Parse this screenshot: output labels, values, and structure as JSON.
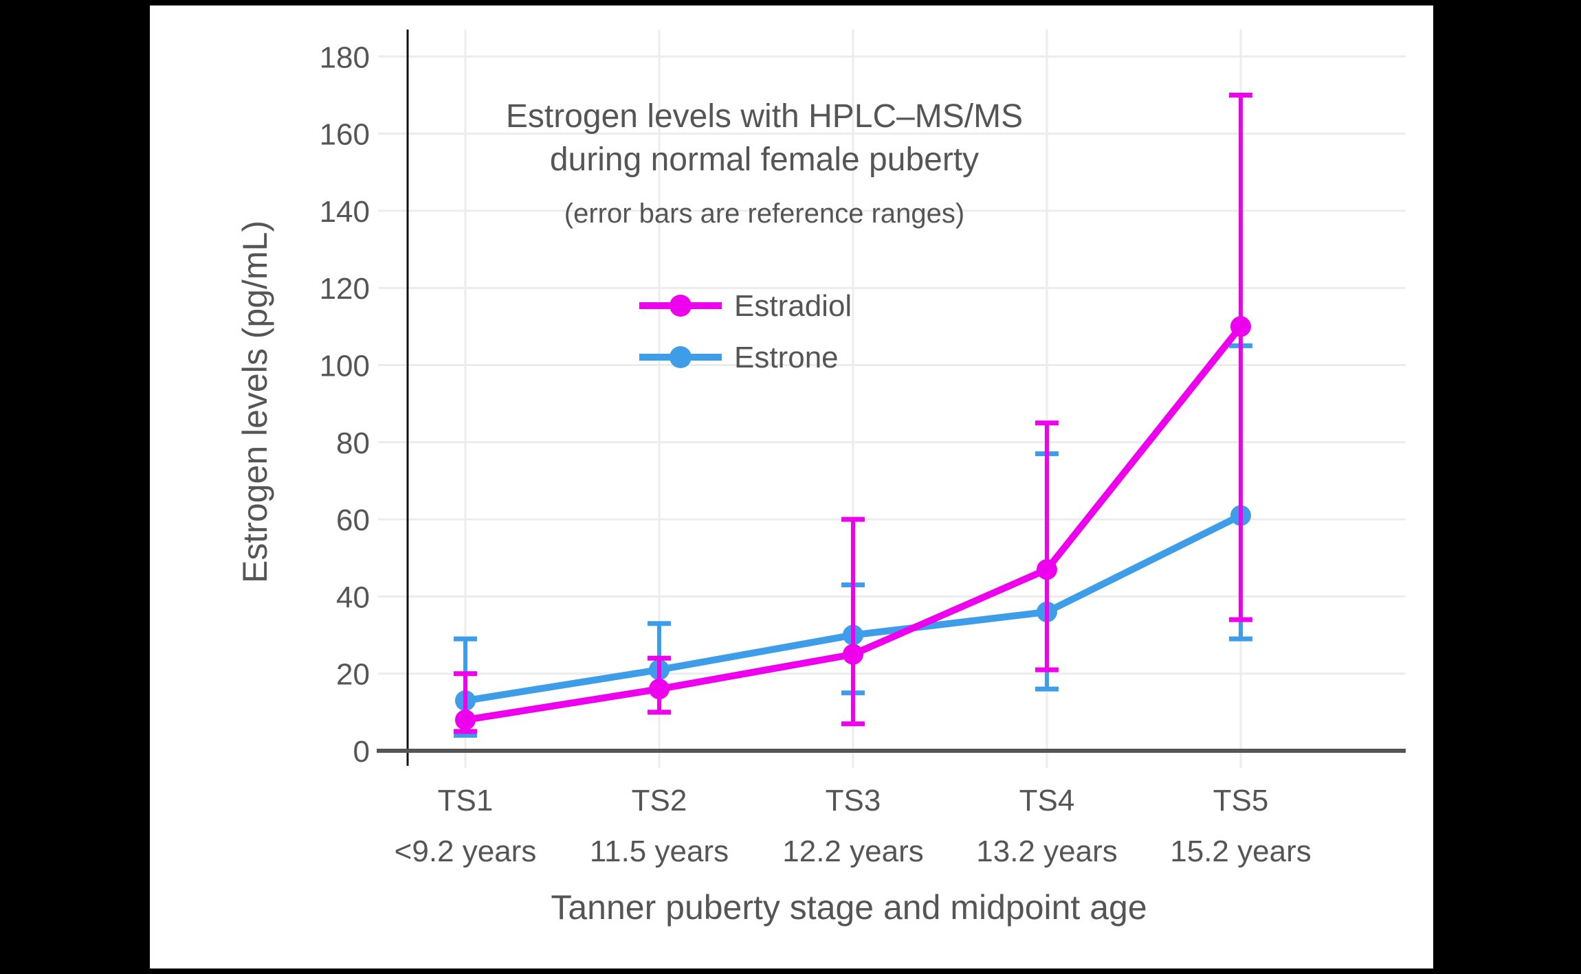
{
  "frame": {
    "background": "#000000",
    "canvas_background": "#ffffff"
  },
  "colors": {
    "estradiol": "#EE00EE",
    "estrone": "#3D9DE8",
    "text": "#555555",
    "tick_text": "#4d4d4d",
    "gridline": "#ECECEC",
    "y_axis_line": "#111111",
    "x_axis_line": "#555555"
  },
  "chart_data": {
    "type": "line",
    "title_line1": "Estrogen levels with HPLC–MS/MS",
    "title_line2": "during normal female puberty",
    "subtitle": "(error bars are reference ranges)",
    "xlabel": "Tanner puberty stage and midpoint age",
    "ylabel": "Estrogen levels (pg/mL)",
    "categories": [
      "TS1",
      "TS2",
      "TS3",
      "TS4",
      "TS5"
    ],
    "category_sublabels": [
      "<9.2 years",
      "11.5 years",
      "12.2 years",
      "13.2 years",
      "15.2 years"
    ],
    "y_ticks": [
      0,
      20,
      40,
      60,
      80,
      100,
      120,
      140,
      160,
      180
    ],
    "ylim": [
      0,
      187
    ],
    "grid": true,
    "legend_position": "inside-upper-left",
    "series": [
      {
        "name": "Estradiol",
        "color": "#EE00EE",
        "values": [
          8,
          16,
          25,
          47,
          110
        ],
        "error_low": [
          5,
          10,
          7,
          21,
          34
        ],
        "error_high": [
          20,
          24,
          60,
          85,
          170
        ]
      },
      {
        "name": "Estrone",
        "color": "#3D9DE8",
        "values": [
          13,
          21,
          30,
          36,
          61
        ],
        "error_low": [
          4,
          10,
          15,
          16,
          29
        ],
        "error_high": [
          29,
          33,
          43,
          77,
          105
        ]
      }
    ]
  }
}
